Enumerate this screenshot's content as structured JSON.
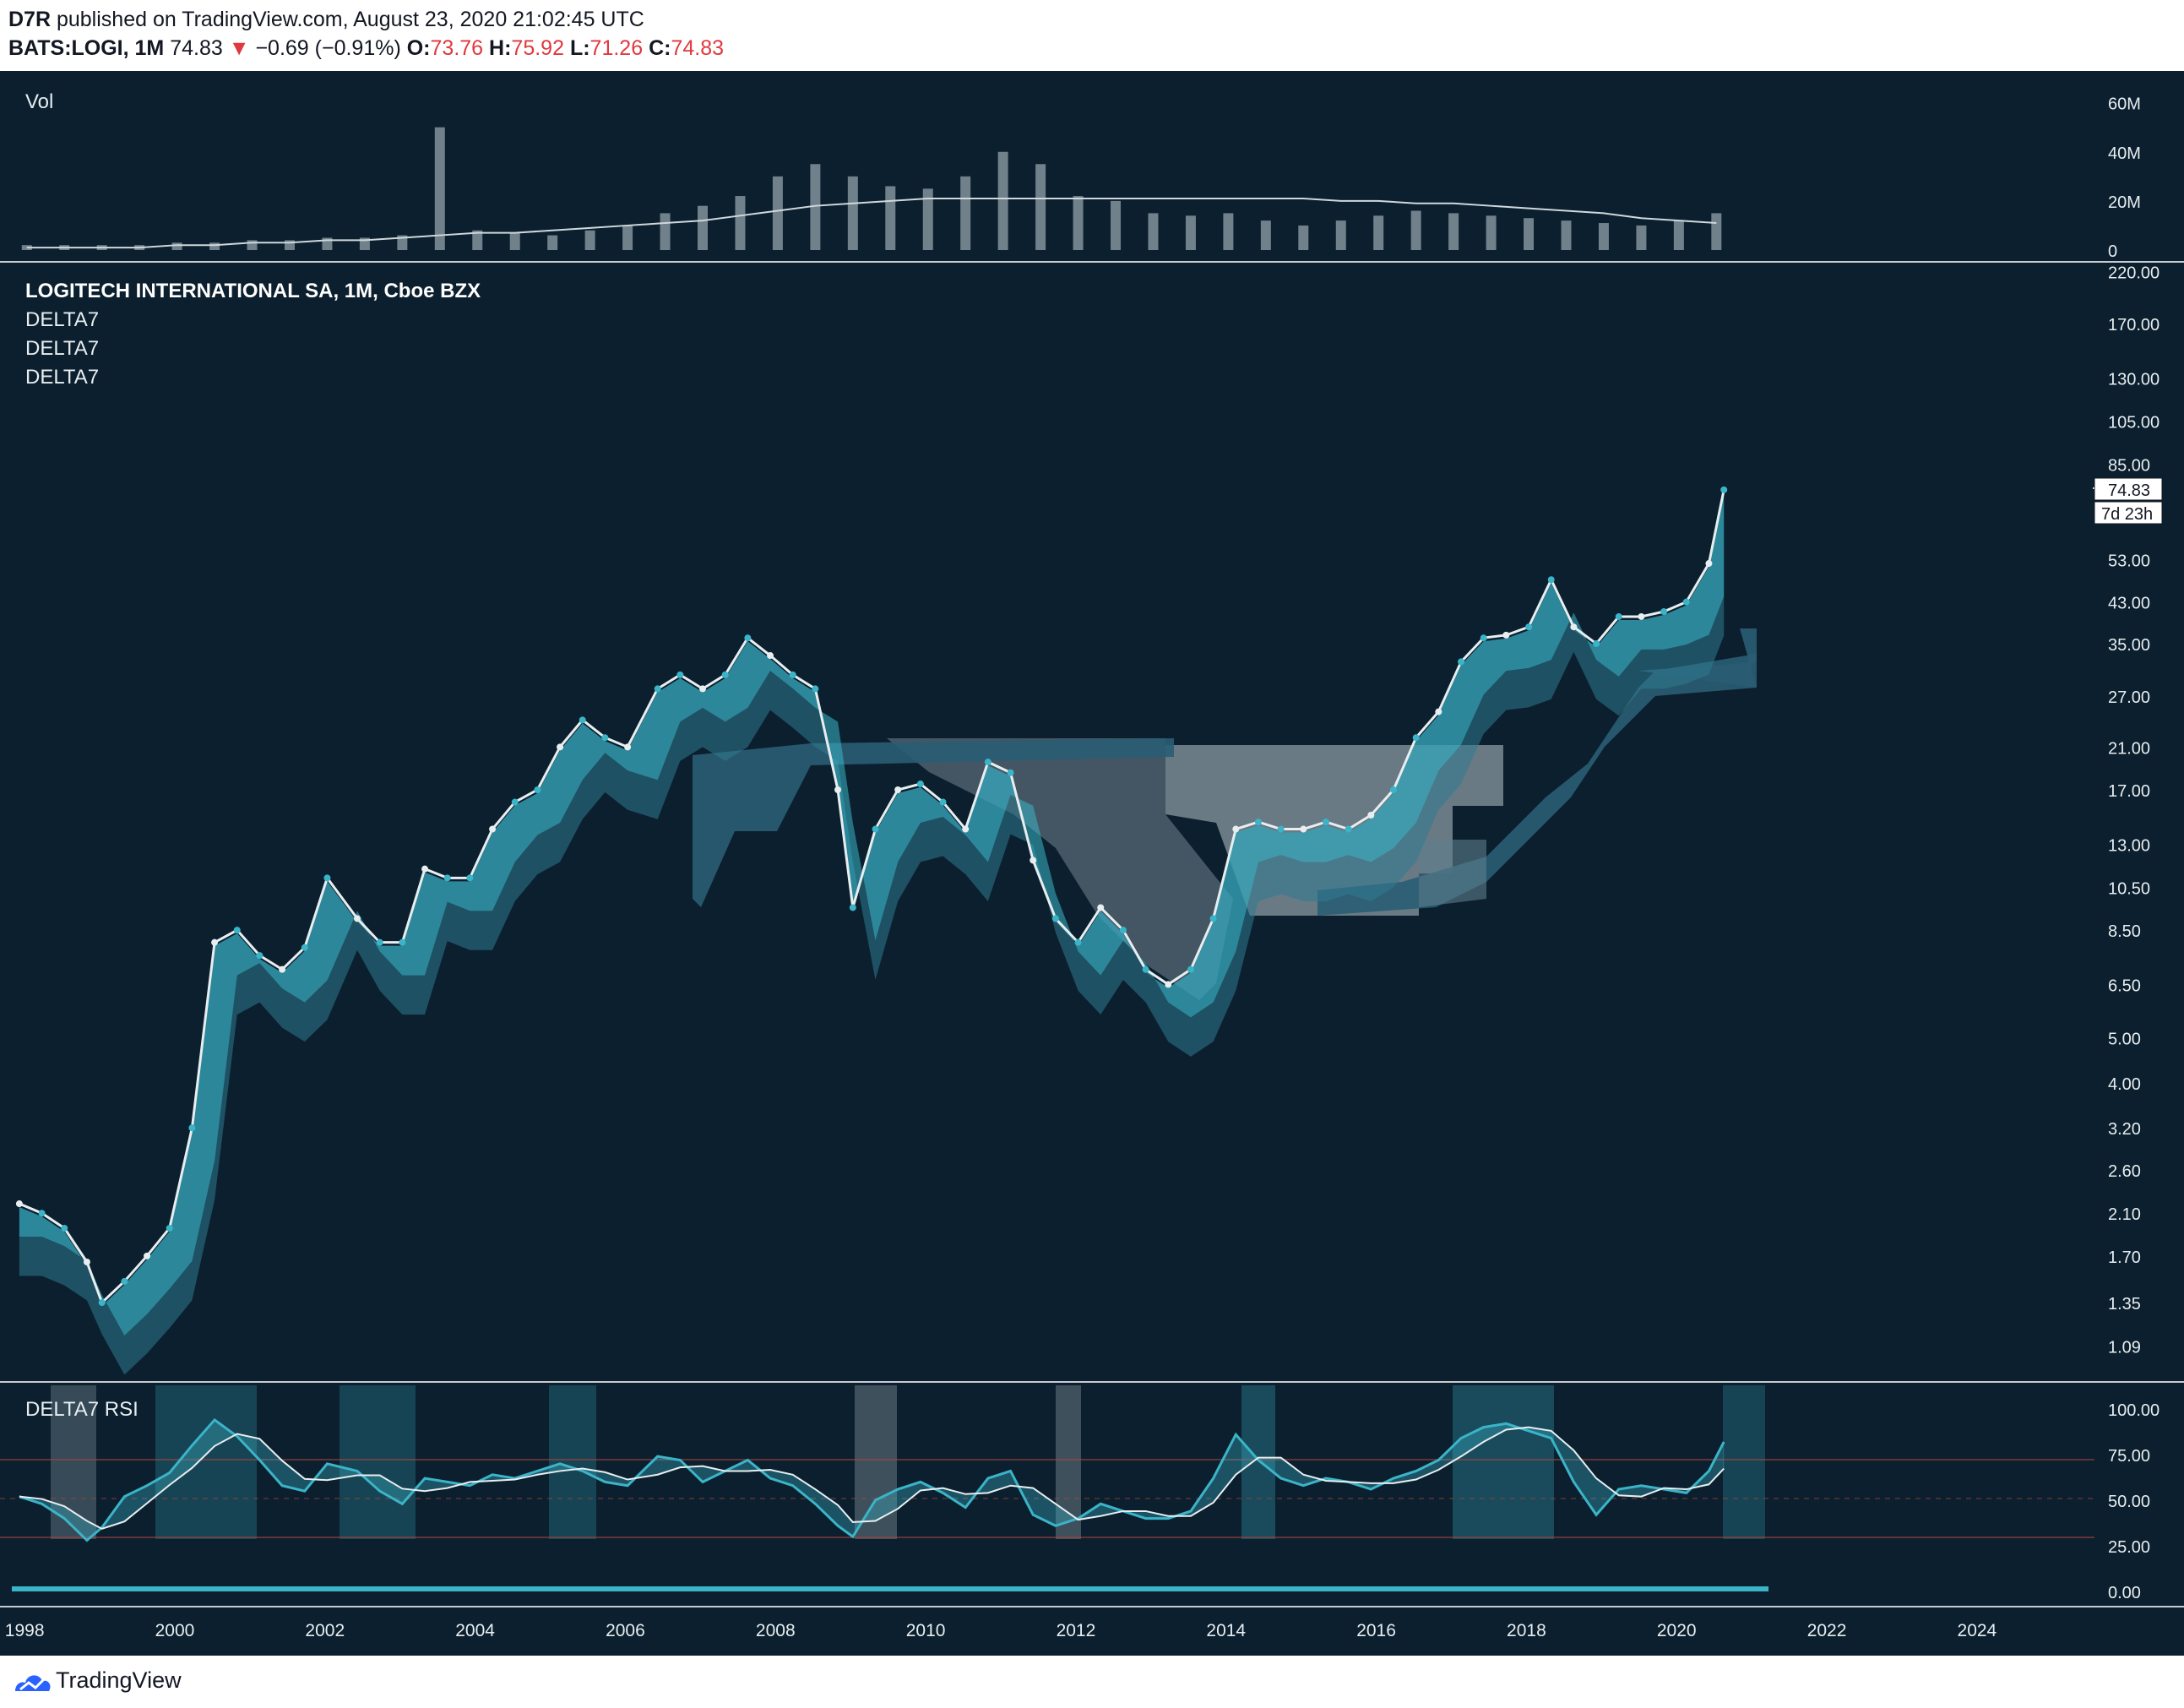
{
  "header": {
    "author": "D7R",
    "published_text": "published on TradingView.com, August 23, 2020 21:02:45 UTC",
    "symbol": "BATS:LOGI, 1M",
    "last": "74.83",
    "change_arrow": "▼",
    "change": "−0.69 (−0.91%)",
    "open_label": "O:",
    "open": "73.76",
    "high_label": "H:",
    "high": "75.92",
    "low_label": "L:",
    "low": "71.26",
    "close_label": "C:",
    "close": "74.83"
  },
  "panes": {
    "volume_title": "Vol",
    "main_title": "LOGITECH INTERNATIONAL SA, 1M, Cboe BZX",
    "indicators": [
      "DELTA7",
      "DELTA7",
      "DELTA7"
    ],
    "rsi_title": "DELTA7 RSI"
  },
  "price_badge": {
    "price": "74.83",
    "countdown": "7d 23h"
  },
  "footer": {
    "brand": "TradingView"
  },
  "colors": {
    "background": "#0b1f2e",
    "cyan": "#3bb4c8",
    "white": "#e8eef0",
    "grey_band": "#8a9aa3",
    "dark_band": "#2a5d73",
    "red": "#d2382e"
  },
  "chart_data": [
    {
      "type": "bar",
      "title": "Vol",
      "yticks": [
        "60M",
        "40M",
        "20M",
        "0"
      ],
      "ytick_values": [
        60,
        40,
        20,
        0
      ],
      "ylim": [
        0,
        64
      ],
      "unit": "M",
      "x": [
        1998.0,
        1998.5,
        1999.0,
        1999.5,
        2000.0,
        2000.5,
        2001.0,
        2001.5,
        2002.0,
        2002.5,
        2003.0,
        2003.5,
        2004.0,
        2004.5,
        2005.0,
        2005.5,
        2006.0,
        2006.5,
        2007.0,
        2007.5,
        2008.0,
        2008.5,
        2009.0,
        2009.5,
        2010.0,
        2010.5,
        2011.0,
        2011.5,
        2012.0,
        2012.5,
        2013.0,
        2013.5,
        2014.0,
        2014.5,
        2015.0,
        2015.5,
        2016.0,
        2016.5,
        2017.0,
        2017.5,
        2018.0,
        2018.5,
        2019.0,
        2019.5,
        2020.0,
        2020.5
      ],
      "values": [
        2,
        2,
        2,
        2,
        3,
        3,
        4,
        4,
        5,
        5,
        6,
        50,
        8,
        7,
        6,
        8,
        10,
        15,
        18,
        22,
        30,
        35,
        30,
        26,
        25,
        30,
        40,
        35,
        22,
        20,
        15,
        14,
        15,
        12,
        10,
        12,
        14,
        16,
        15,
        14,
        13,
        12,
        11,
        10,
        12,
        15
      ],
      "ma_values": [
        1,
        1,
        1,
        1,
        2,
        2,
        3,
        3,
        4,
        4,
        5,
        6,
        7,
        7,
        8,
        9,
        10,
        11,
        12,
        14,
        16,
        18,
        19,
        20,
        21,
        21,
        21,
        21,
        21,
        21,
        21,
        21,
        21,
        21,
        21,
        20,
        20,
        19,
        19,
        18,
        17,
        16,
        15,
        13,
        12,
        11
      ]
    },
    {
      "type": "line",
      "title": "LOGITECH INTERNATIONAL SA, 1M, Cboe BZX",
      "scale": "log",
      "yticks": [
        "220.00",
        "170.00",
        "130.00",
        "105.00",
        "85.00",
        "53.00",
        "43.00",
        "35.00",
        "27.00",
        "21.00",
        "17.00",
        "13.00",
        "10.50",
        "8.50",
        "6.50",
        "5.00",
        "4.00",
        "3.20",
        "2.60",
        "2.10",
        "1.70",
        "1.35",
        "1.09"
      ],
      "ytick_values": [
        220,
        170,
        130,
        105,
        85,
        53,
        43,
        35,
        27,
        21,
        17,
        13,
        10.5,
        8.5,
        6.5,
        5,
        4,
        3.2,
        2.6,
        2.1,
        1.7,
        1.35,
        1.09
      ],
      "xticks": [
        "1998",
        "2000",
        "2002",
        "2004",
        "2006",
        "2008",
        "2010",
        "2012",
        "2014",
        "2016",
        "2018",
        "2020",
        "2022",
        "2024"
      ],
      "xtick_values": [
        1998,
        2000,
        2002,
        2004,
        2006,
        2008,
        2010,
        2012,
        2014,
        2016,
        2018,
        2020,
        2022,
        2024
      ],
      "xlim": [
        1997.8,
        2025.4
      ],
      "ylim": [
        1.0,
        225
      ],
      "series": [
        {
          "x": [
            1997.9,
            1998.2,
            1998.5,
            1998.8,
            1999.0,
            1999.3,
            1999.6,
            1999.9,
            2000.2,
            2000.5,
            2000.8,
            2001.1,
            2001.4,
            2001.7,
            2002.0,
            2002.4,
            2002.7,
            2003.0,
            2003.3,
            2003.6,
            2003.9,
            2004.2,
            2004.5,
            2004.8,
            2005.1,
            2005.4,
            2005.7,
            2006.0,
            2006.4,
            2006.7,
            2007.0,
            2007.3,
            2007.6,
            2007.9,
            2008.2,
            2008.5,
            2008.8,
            2009.0,
            2009.3,
            2009.6,
            2009.9,
            2010.2,
            2010.5,
            2010.8,
            2011.1,
            2011.4,
            2011.7,
            2012.0,
            2012.3,
            2012.6,
            2012.9,
            2013.2,
            2013.5,
            2013.8,
            2014.1,
            2014.4,
            2014.7,
            2015.0,
            2015.3,
            2015.6,
            2015.9,
            2016.2,
            2016.5,
            2016.8,
            2017.1,
            2017.4,
            2017.7,
            2018.0,
            2018.3,
            2018.6,
            2018.9,
            2019.2,
            2019.5,
            2019.8,
            2020.1,
            2020.4,
            2020.6
          ],
          "values": [
            2.2,
            2.1,
            1.95,
            1.65,
            1.35,
            1.5,
            1.7,
            1.95,
            3.2,
            8.0,
            8.5,
            7.5,
            7.0,
            7.8,
            11.0,
            9.0,
            8.0,
            8.0,
            11.5,
            11.0,
            11.0,
            14.0,
            16.0,
            17.0,
            21.0,
            24.0,
            22.0,
            21.0,
            28.0,
            30.0,
            28.0,
            30.0,
            36.0,
            33.0,
            30.0,
            28.0,
            17.0,
            9.5,
            14.0,
            17.0,
            17.5,
            16.0,
            14.0,
            19.5,
            18.5,
            12.0,
            9.0,
            8.0,
            9.5,
            8.5,
            7.0,
            6.5,
            7.0,
            9.0,
            14.0,
            14.5,
            14.0,
            14.0,
            14.5,
            14.0,
            15.0,
            17.0,
            22.0,
            25.0,
            32.0,
            36.0,
            36.5,
            38.0,
            48.0,
            38.0,
            35.0,
            40.0,
            40.0,
            41.0,
            43.0,
            52.0,
            74.83
          ]
        }
      ]
    },
    {
      "type": "line",
      "title": "DELTA7 RSI",
      "yticks": [
        "100.00",
        "75.00",
        "50.00",
        "25.00",
        "0.00"
      ],
      "ytick_values": [
        100,
        75,
        50,
        25,
        0
      ],
      "ylim": [
        0,
        100
      ],
      "levels": [
        70,
        50,
        30
      ],
      "series": [
        {
          "x": [
            1997.9,
            1998.2,
            1998.5,
            1998.8,
            1999.0,
            1999.3,
            1999.6,
            1999.9,
            2000.2,
            2000.5,
            2000.8,
            2001.1,
            2001.4,
            2001.7,
            2002.0,
            2002.4,
            2002.7,
            2003.0,
            2003.3,
            2003.6,
            2003.9,
            2004.2,
            2004.5,
            2004.8,
            2005.1,
            2005.4,
            2005.7,
            2006.0,
            2006.4,
            2006.7,
            2007.0,
            2007.3,
            2007.6,
            2007.9,
            2008.2,
            2008.5,
            2008.8,
            2009.0,
            2009.3,
            2009.6,
            2009.9,
            2010.2,
            2010.5,
            2010.8,
            2011.1,
            2011.4,
            2011.7,
            2012.0,
            2012.3,
            2012.6,
            2012.9,
            2013.2,
            2013.5,
            2013.8,
            2014.1,
            2014.4,
            2014.7,
            2015.0,
            2015.3,
            2015.6,
            2015.9,
            2016.2,
            2016.5,
            2016.8,
            2017.1,
            2017.4,
            2017.7,
            2018.0,
            2018.3,
            2018.6,
            2018.9,
            2019.2,
            2019.5,
            2019.8,
            2020.1,
            2020.4,
            2020.6
          ],
          "values": [
            52,
            48,
            40,
            28,
            35,
            52,
            58,
            65,
            80,
            94,
            85,
            72,
            58,
            55,
            70,
            66,
            55,
            48,
            62,
            60,
            58,
            64,
            62,
            66,
            70,
            66,
            60,
            58,
            74,
            72,
            60,
            66,
            72,
            62,
            58,
            48,
            36,
            30,
            50,
            56,
            60,
            54,
            46,
            62,
            66,
            42,
            36,
            40,
            48,
            44,
            40,
            40,
            44,
            62,
            86,
            72,
            62,
            58,
            62,
            60,
            56,
            62,
            66,
            72,
            84,
            90,
            92,
            88,
            84,
            60,
            42,
            56,
            58,
            56,
            54,
            66,
            82
          ]
        }
      ]
    }
  ]
}
